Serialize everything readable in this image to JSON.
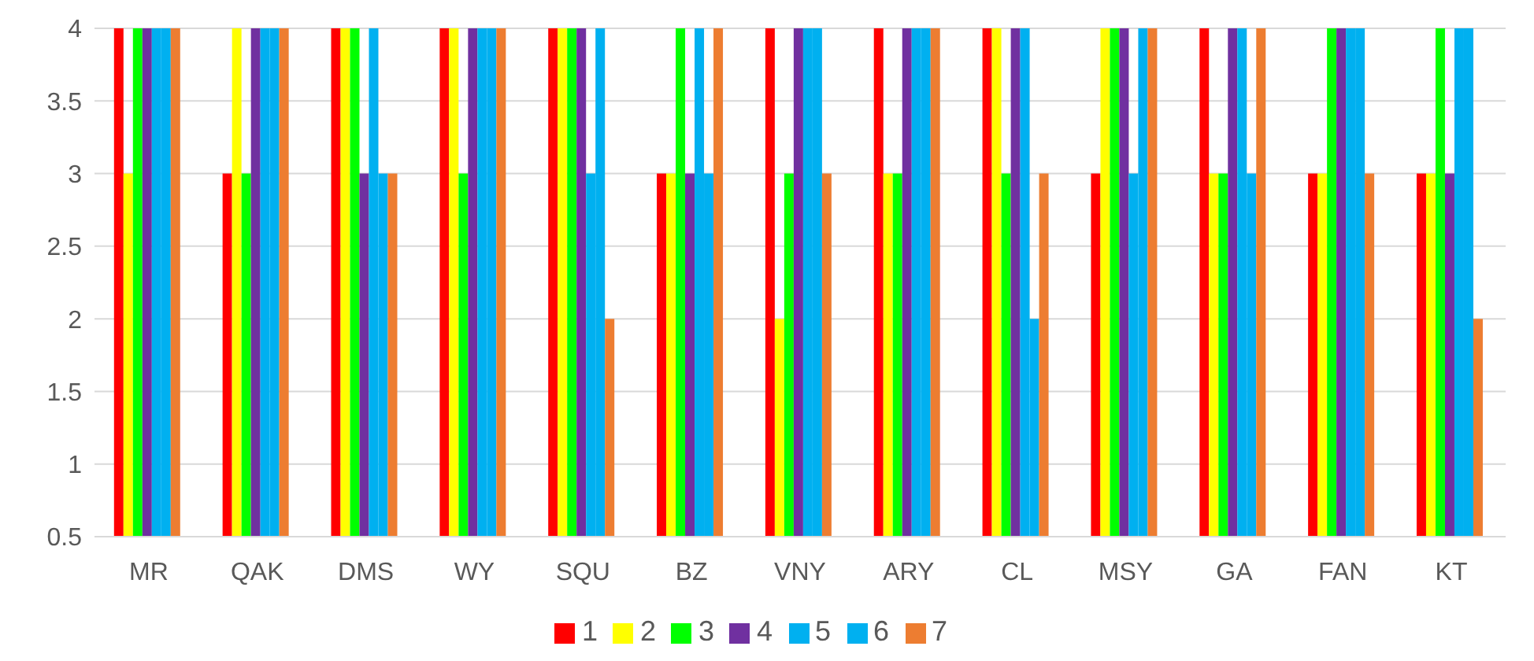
{
  "chart_data": {
    "type": "bar",
    "categories": [
      "MR",
      "QAK",
      "DMS",
      "WY",
      "SQU",
      "BZ",
      "VNY",
      "ARY",
      "CL",
      "MSY",
      "GA",
      "FAN",
      "KT"
    ],
    "series": [
      {
        "name": "1",
        "color": "#ff0000",
        "values": [
          4,
          3,
          4,
          4,
          4,
          3,
          4,
          4,
          4,
          3,
          4,
          3,
          3
        ]
      },
      {
        "name": "2",
        "color": "#ffff00",
        "values": [
          3,
          4,
          4,
          4,
          4,
          3,
          2,
          3,
          4,
          4,
          3,
          3,
          3
        ]
      },
      {
        "name": "3",
        "color": "#00ff00",
        "values": [
          4,
          3,
          4,
          3,
          4,
          4,
          3,
          3,
          3,
          4,
          3,
          4,
          4
        ]
      },
      {
        "name": "4",
        "color": "#7030a0",
        "values": [
          4,
          4,
          3,
          4,
          4,
          3,
          4,
          4,
          4,
          4,
          4,
          4,
          3
        ]
      },
      {
        "name": "5",
        "color": "#00b0f0",
        "values": [
          4,
          4,
          4,
          4,
          3,
          4,
          4,
          4,
          4,
          3,
          4,
          4,
          4
        ]
      },
      {
        "name": "6",
        "color": "#00b0f0",
        "values": [
          4,
          4,
          3,
          4,
          4,
          3,
          4,
          4,
          2,
          4,
          3,
          4,
          4
        ]
      },
      {
        "name": "7",
        "color": "#ed7d31",
        "values": [
          4,
          4,
          3,
          4,
          2,
          4,
          3,
          4,
          3,
          4,
          4,
          3,
          2
        ]
      }
    ],
    "ylim": [
      0.5,
      4
    ],
    "yticks": [
      0.5,
      1,
      1.5,
      2,
      2.5,
      3,
      3.5,
      4
    ],
    "grid": "y",
    "legend": "bottom"
  }
}
